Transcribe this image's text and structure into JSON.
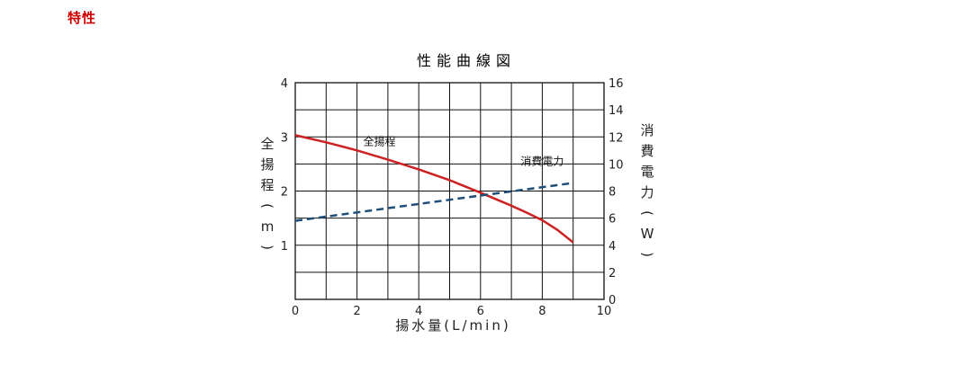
{
  "section": {
    "title": "特性",
    "color": "#cc0000"
  },
  "chart_data": {
    "type": "line",
    "title": "性能曲線図",
    "xlabel": "揚水量(L/min)",
    "ylabel_left": "全揚程(m)",
    "ylabel_right": "消費電力(W)",
    "xlim": [
      0,
      10
    ],
    "ylim_left": [
      0,
      4
    ],
    "ylim_right": [
      0,
      16
    ],
    "x_ticks": [
      "0",
      "2",
      "4",
      "6",
      "8",
      "10"
    ],
    "y_left_ticks": [
      "1",
      "2",
      "3",
      "4"
    ],
    "y_right_ticks": [
      "0",
      "2",
      "4",
      "6",
      "8",
      "10",
      "12",
      "14",
      "16"
    ],
    "grid": true,
    "series": [
      {
        "name": "全揚程",
        "axis": "left",
        "color": "#cc2222",
        "style": "solid",
        "x": [
          0,
          1,
          2,
          3,
          4,
          5,
          6,
          7,
          7.5,
          8,
          8.5,
          9
        ],
        "y": [
          3.03,
          2.9,
          2.75,
          2.58,
          2.4,
          2.2,
          1.97,
          1.73,
          1.6,
          1.46,
          1.28,
          1.05
        ]
      },
      {
        "name": "消費電力",
        "axis": "right",
        "color": "#1f4e79",
        "style": "dashed",
        "x": [
          0,
          9
        ],
        "y": [
          5.8,
          8.6
        ]
      }
    ]
  }
}
